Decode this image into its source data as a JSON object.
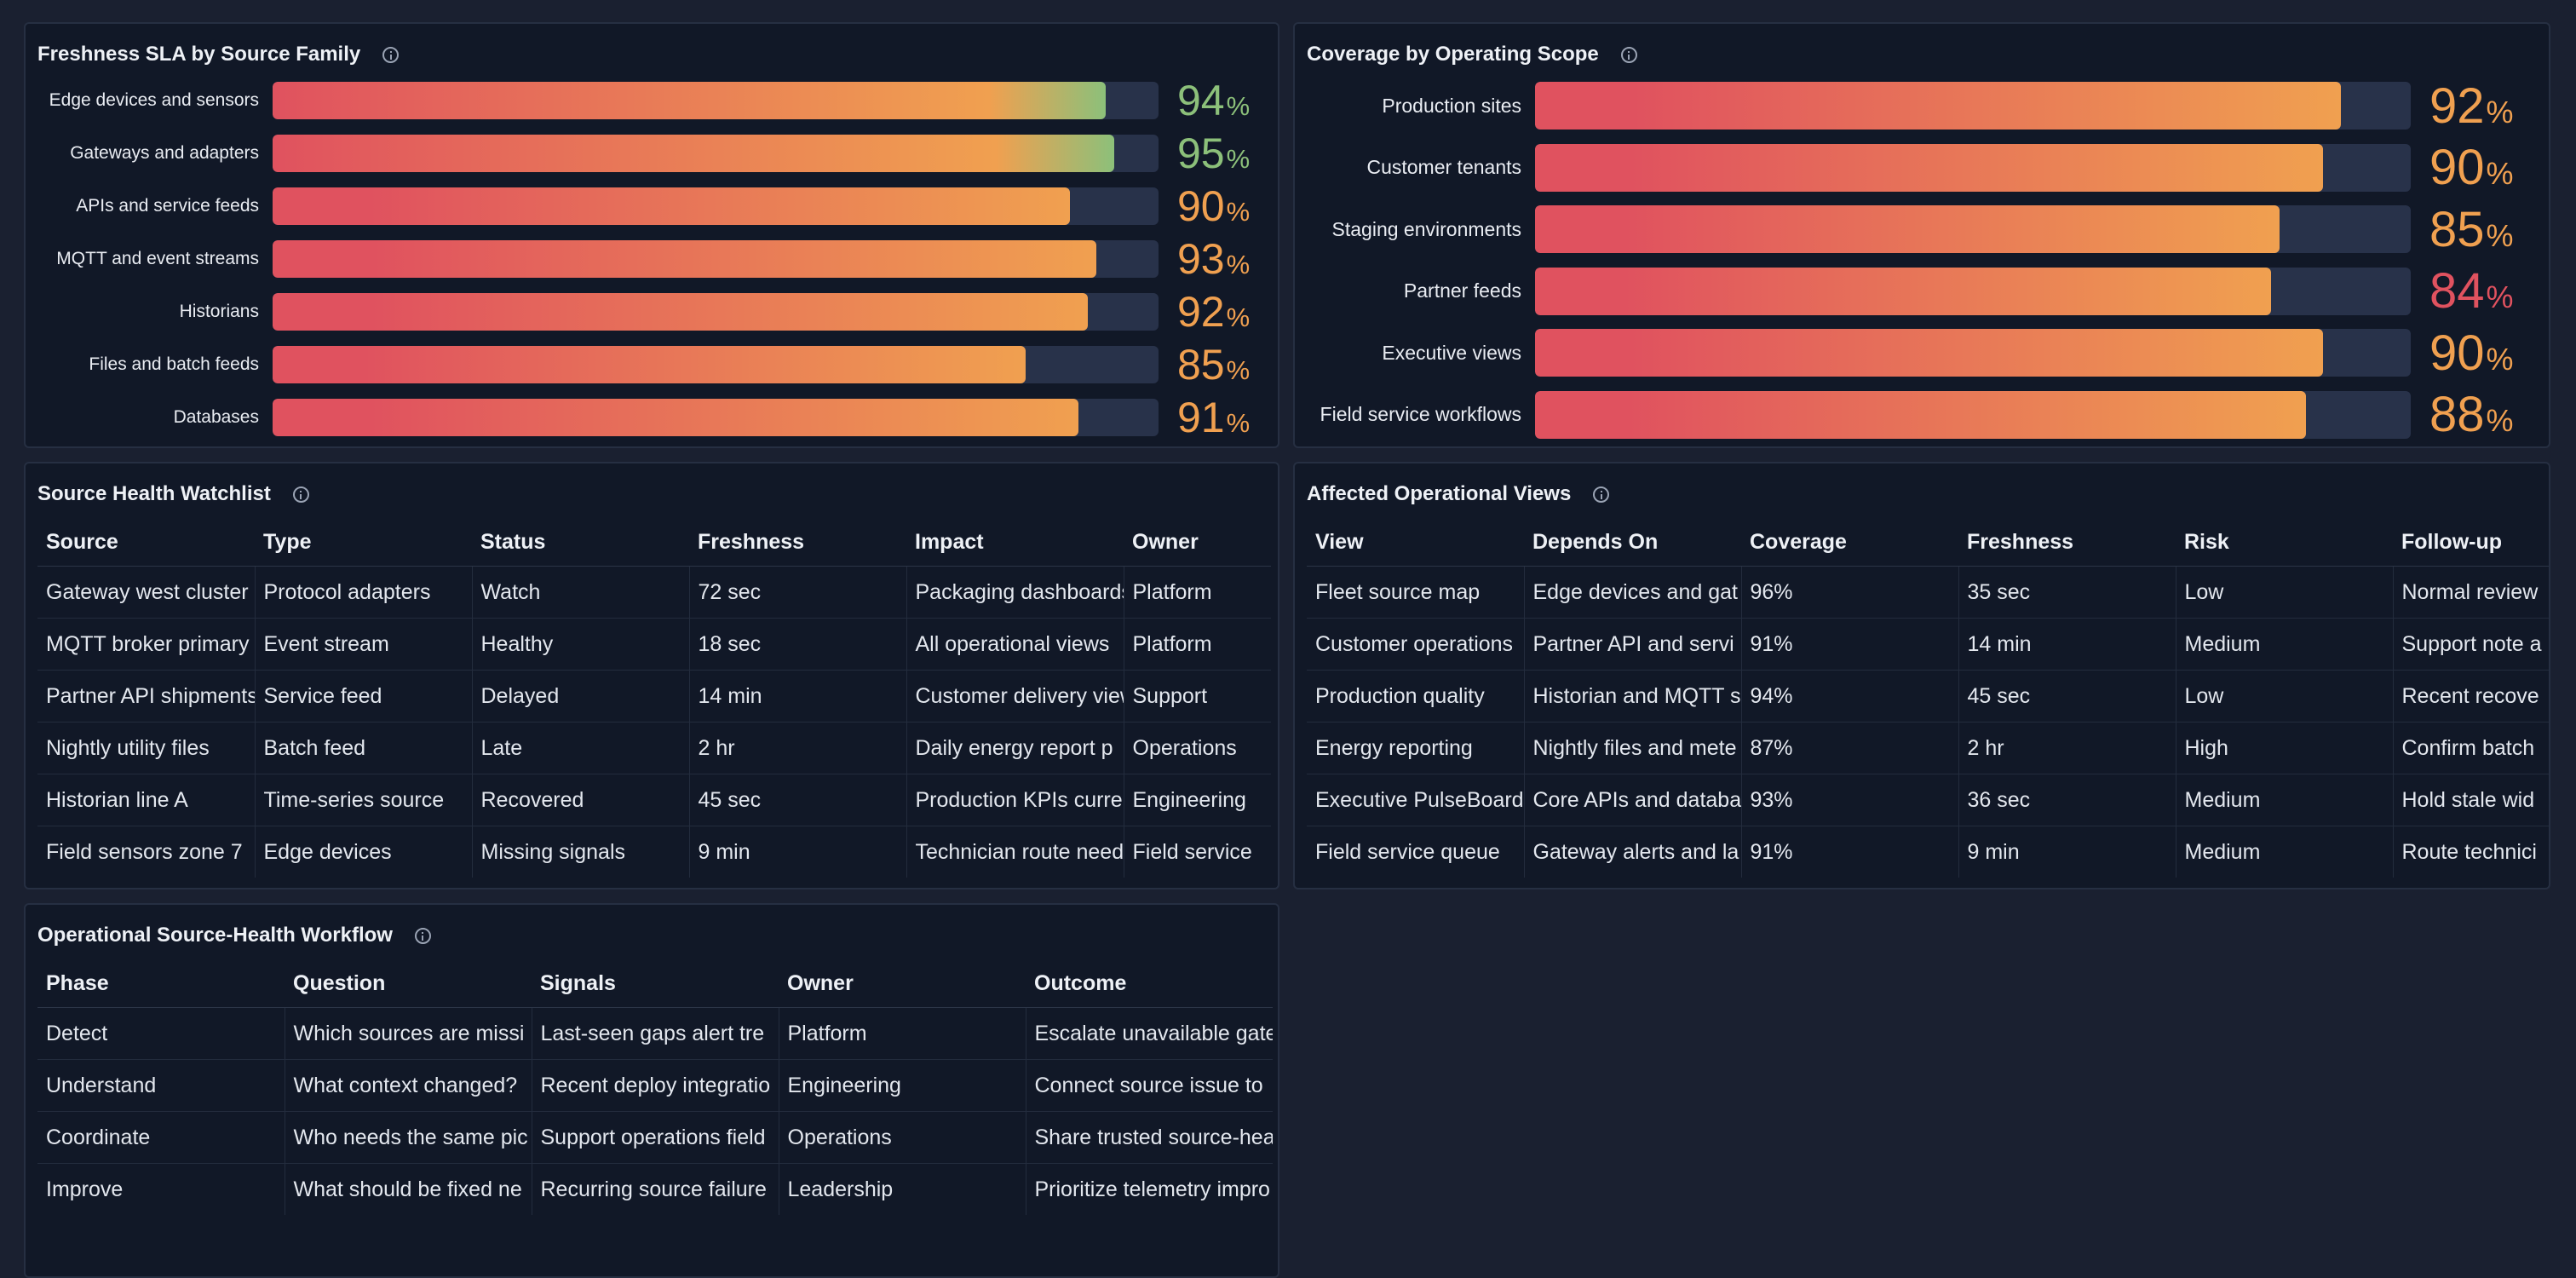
{
  "freshness": {
    "title": "Freshness SLA by Source Family",
    "rows": [
      {
        "label": "Edge devices and sensors",
        "value": 94,
        "pct": "%",
        "green": true
      },
      {
        "label": "Gateways and adapters",
        "value": 95,
        "pct": "%",
        "green": true
      },
      {
        "label": "APIs and service feeds",
        "value": 90,
        "pct": "%",
        "green": false
      },
      {
        "label": "MQTT and event streams",
        "value": 93,
        "pct": "%",
        "green": false
      },
      {
        "label": "Historians",
        "value": 92,
        "pct": "%",
        "green": false
      },
      {
        "label": "Files and batch feeds",
        "value": 85,
        "pct": "%",
        "green": false
      },
      {
        "label": "Databases",
        "value": 91,
        "pct": "%",
        "green": false
      }
    ],
    "colors": {
      "high": "#8cc07a",
      "mid": "#f0a050",
      "low": "#e0525f"
    }
  },
  "coverage": {
    "title": "Coverage by Operating Scope",
    "rows": [
      {
        "label": "Production sites",
        "value": 92,
        "pct": "%"
      },
      {
        "label": "Customer tenants",
        "value": 90,
        "pct": "%"
      },
      {
        "label": "Staging environments",
        "value": 85,
        "pct": "%"
      },
      {
        "label": "Partner feeds",
        "value": 84,
        "pct": "%"
      },
      {
        "label": "Executive views",
        "value": 90,
        "pct": "%"
      },
      {
        "label": "Field service workflows",
        "value": 88,
        "pct": "%"
      }
    ]
  },
  "watchlist": {
    "title": "Source Health Watchlist",
    "columns": [
      "Source",
      "Type",
      "Status",
      "Freshness",
      "Impact",
      "Owner"
    ],
    "rows": [
      [
        "Gateway west cluster",
        "Protocol adapters",
        "Watch",
        "72 sec",
        "Packaging dashboards",
        "Platform"
      ],
      [
        "MQTT broker primary",
        "Event stream",
        "Healthy",
        "18 sec",
        "All operational views",
        "Platform"
      ],
      [
        "Partner API shipments",
        "Service feed",
        "Delayed",
        "14 min",
        "Customer delivery views",
        "Support"
      ],
      [
        "Nightly utility files",
        "Batch feed",
        "Late",
        "2 hr",
        "Daily energy report p",
        "Operations"
      ],
      [
        "Historian line A",
        "Time-series source",
        "Recovered",
        "45 sec",
        "Production KPIs curre",
        "Engineering"
      ],
      [
        "Field sensors zone 7",
        "Edge devices",
        "Missing signals",
        "9 min",
        "Technician route need",
        "Field service"
      ]
    ]
  },
  "affected": {
    "title": "Affected Operational Views",
    "columns": [
      "View",
      "Depends On",
      "Coverage",
      "Freshness",
      "Risk",
      "Follow-up"
    ],
    "rows": [
      [
        "Fleet source map",
        "Edge devices and gat",
        "96%",
        "35 sec",
        "Low",
        "Normal review"
      ],
      [
        "Customer operations",
        "Partner API and servi",
        "91%",
        "14 min",
        "Medium",
        "Support note a"
      ],
      [
        "Production quality",
        "Historian and MQTT s",
        "94%",
        "45 sec",
        "Low",
        "Recent recove"
      ],
      [
        "Energy reporting",
        "Nightly files and mete",
        "87%",
        "2 hr",
        "High",
        "Confirm batch"
      ],
      [
        "Executive PulseBoard",
        "Core APIs and databa",
        "93%",
        "36 sec",
        "Medium",
        "Hold stale wid"
      ],
      [
        "Field service queue",
        "Gateway alerts and la",
        "91%",
        "9 min",
        "Medium",
        "Route technici"
      ]
    ]
  },
  "workflow": {
    "title": "Operational Source-Health Workflow",
    "columns": [
      "Phase",
      "Question",
      "Signals",
      "Owner",
      "Outcome"
    ],
    "rows": [
      [
        "Detect",
        "Which sources are missi",
        "Last-seen gaps alert tre",
        "Platform",
        "Escalate unavailable gate"
      ],
      [
        "Understand",
        "What context changed?",
        "Recent deploy integratio",
        "Engineering",
        "Connect source issue to"
      ],
      [
        "Coordinate",
        "Who needs the same pic",
        "Support operations field",
        "Operations",
        "Share trusted source-hea"
      ],
      [
        "Improve",
        "What should be fixed ne",
        "Recurring source failure",
        "Leadership",
        "Prioritize telemetry impro"
      ]
    ]
  }
}
